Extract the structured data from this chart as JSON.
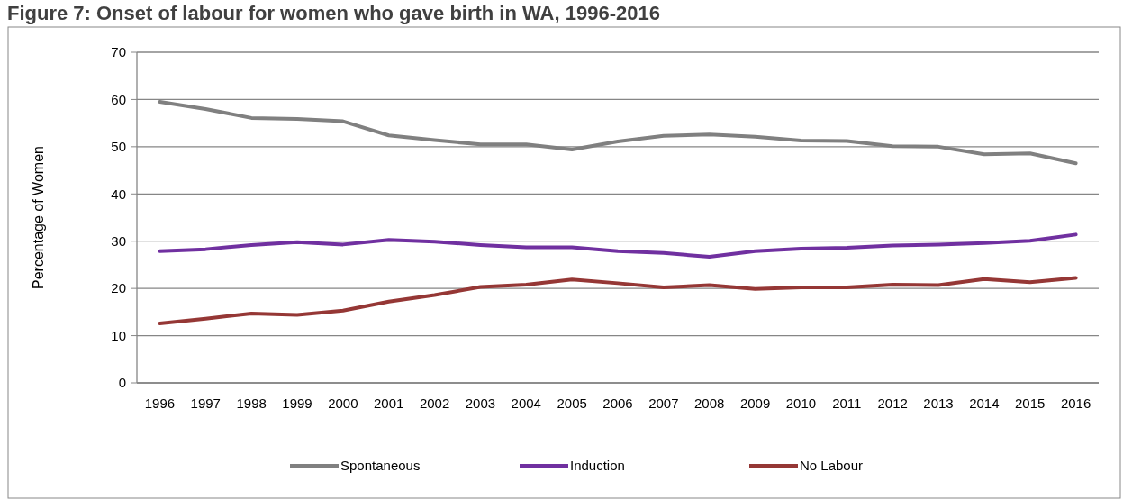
{
  "chart_data": {
    "type": "line",
    "title": "Figure 7: Onset of labour for women who gave birth in WA, 1996-2016",
    "ylabel": "Percentage of Women",
    "categories": [
      "1996",
      "1997",
      "1998",
      "1999",
      "2000",
      "2001",
      "2002",
      "2003",
      "2004",
      "2005",
      "2006",
      "2007",
      "2008",
      "2009",
      "2010",
      "2011",
      "2012",
      "2013",
      "2014",
      "2015",
      "2016"
    ],
    "series": [
      {
        "name": "Spontaneous",
        "color": "#808080",
        "values": [
          59.5,
          58,
          56.1,
          55.9,
          55.4,
          52.4,
          51.4,
          50.5,
          50.5,
          49.4,
          51.1,
          52.3,
          52.6,
          52.1,
          51.3,
          51.2,
          50.1,
          50.0,
          48.4,
          48.6,
          46.5
        ]
      },
      {
        "name": "Induction",
        "color": "#7030a0",
        "values": [
          27.9,
          28.3,
          29.2,
          29.8,
          29.3,
          30.3,
          29.9,
          29.2,
          28.7,
          28.7,
          27.9,
          27.5,
          26.7,
          27.9,
          28.4,
          28.6,
          29.1,
          29.3,
          29.6,
          30.1,
          31.4
        ]
      },
      {
        "name": "No Labour",
        "color": "#953735",
        "values": [
          12.6,
          13.6,
          14.7,
          14.4,
          15.3,
          17.2,
          18.6,
          20.3,
          20.8,
          21.9,
          21.1,
          20.2,
          20.7,
          19.9,
          20.2,
          20.2,
          20.8,
          20.7,
          22.0,
          21.3,
          22.2
        ]
      }
    ],
    "ylim": [
      0,
      70
    ],
    "yticks": [
      0,
      10,
      20,
      30,
      40,
      50,
      60,
      70
    ],
    "grid": "y",
    "legend": "bottom",
    "marker": "none",
    "line_style": "solid"
  }
}
